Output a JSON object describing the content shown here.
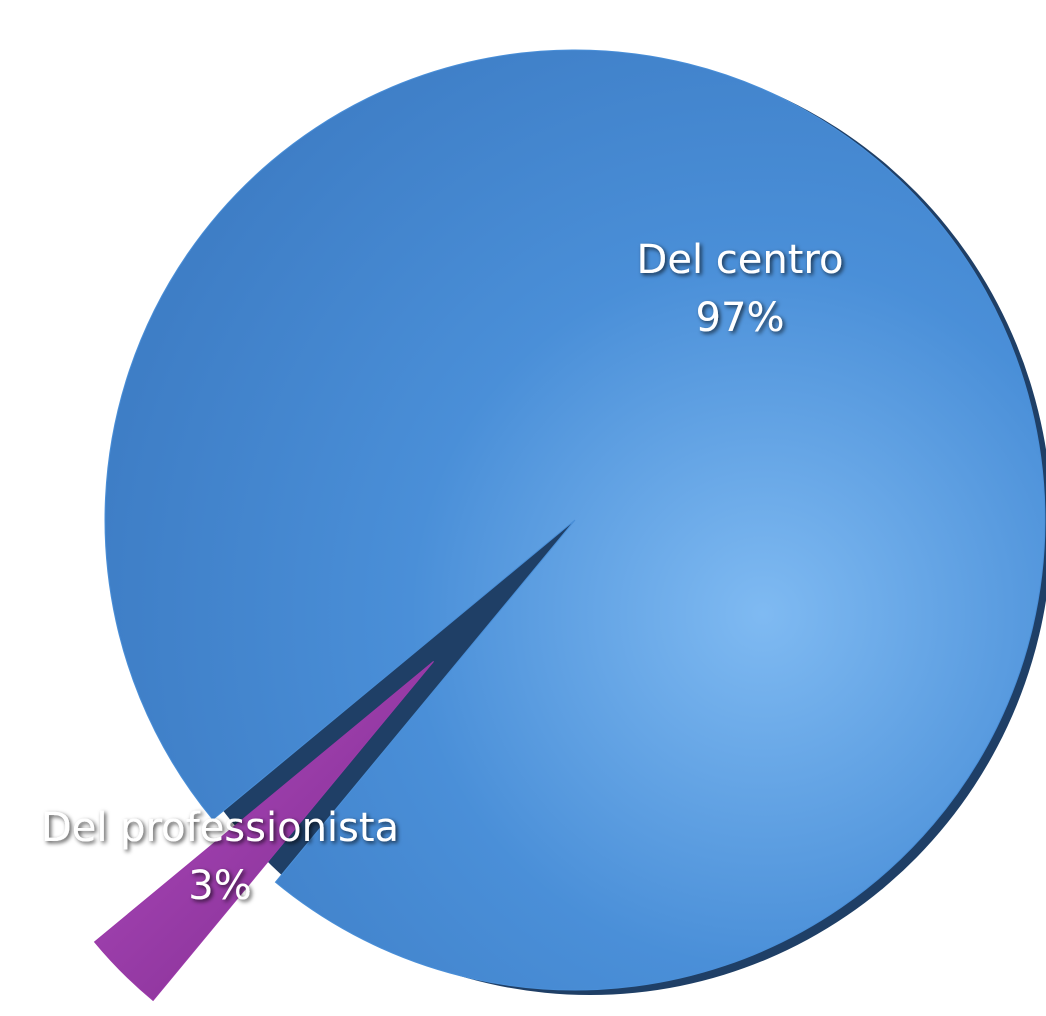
{
  "chart_data": {
    "type": "pie",
    "categories": [
      "Del centro",
      "Del professionista"
    ],
    "values": [
      97,
      3
    ],
    "value_labels": [
      "97%",
      "3%"
    ],
    "colors": [
      "#4a8fd8",
      "#9b3aa9"
    ]
  }
}
